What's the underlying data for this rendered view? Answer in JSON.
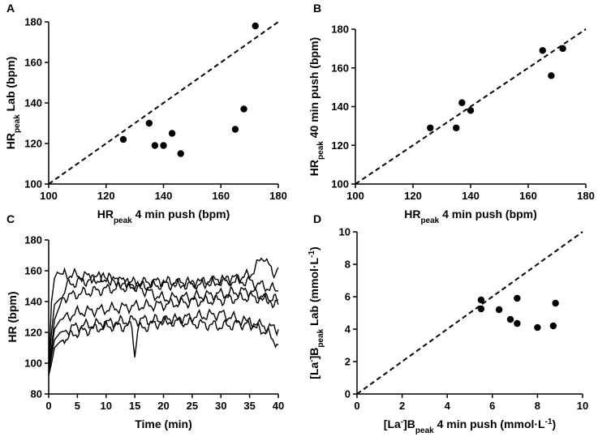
{
  "chart_data": [
    {
      "panel": "A",
      "type": "scatter",
      "xlabel": {
        "main": "HR",
        "sub": "peak",
        "rest": " 4 min push (bpm)"
      },
      "ylabel": {
        "main": "HR",
        "sub": "peak",
        "rest": " Lab (bpm)"
      },
      "xlim": [
        100,
        180
      ],
      "ylim": [
        100,
        180
      ],
      "xticks": [
        "100",
        "120",
        "140",
        "160",
        "180"
      ],
      "yticks": [
        "100",
        "120",
        "140",
        "160",
        "180"
      ],
      "identity_line": true,
      "points": [
        [
          126,
          122
        ],
        [
          135,
          130
        ],
        [
          137,
          119
        ],
        [
          140,
          119
        ],
        [
          143,
          125
        ],
        [
          146,
          115
        ],
        [
          165,
          127
        ],
        [
          168,
          137
        ],
        [
          172,
          178
        ]
      ]
    },
    {
      "panel": "B",
      "type": "scatter",
      "xlabel": {
        "main": "HR",
        "sub": "peak",
        "rest": " 4 min push (bpm)"
      },
      "ylabel": {
        "main": "HR",
        "sub": "peak",
        "rest": " 40 min push (bpm)"
      },
      "xlim": [
        100,
        180
      ],
      "ylim": [
        100,
        180
      ],
      "xticks": [
        "100",
        "120",
        "140",
        "160",
        "180"
      ],
      "yticks": [
        "100",
        "120",
        "140",
        "160",
        "180"
      ],
      "identity_line": true,
      "points": [
        [
          126,
          129
        ],
        [
          135,
          129
        ],
        [
          137,
          142
        ],
        [
          140,
          138
        ],
        [
          165,
          169
        ],
        [
          168,
          156
        ],
        [
          172,
          170
        ]
      ]
    },
    {
      "panel": "C",
      "type": "line",
      "xlabel": {
        "main": "Time (min)",
        "sub": "",
        "rest": ""
      },
      "ylabel": {
        "main": "HR (bpm)",
        "sub": "",
        "rest": ""
      },
      "xlim": [
        0,
        40
      ],
      "ylim": [
        80,
        180
      ],
      "xticks": [
        "0",
        "5",
        "10",
        "15",
        "20",
        "25",
        "30",
        "35",
        "40"
      ],
      "yticks": [
        "80",
        "100",
        "120",
        "140",
        "160",
        "180"
      ],
      "series": [
        {
          "name": "s1",
          "t": [
            0,
            0.5,
            1,
            1.5,
            2,
            5,
            10,
            15,
            20,
            25,
            30,
            35,
            40
          ],
          "hr": [
            100,
            140,
            155,
            159,
            158,
            157,
            155,
            152,
            153,
            151,
            154,
            153,
            147
          ]
        },
        {
          "name": "s2",
          "t": [
            0,
            0.5,
            1,
            2,
            5,
            10,
            15,
            20,
            25,
            30,
            35,
            37.5,
            39,
            40
          ],
          "hr": [
            98,
            120,
            138,
            142,
            145,
            148,
            150,
            151,
            152,
            153,
            157,
            170,
            158,
            162
          ]
        },
        {
          "name": "s3",
          "t": [
            0,
            0.5,
            1,
            2,
            3,
            5,
            10,
            15,
            20,
            25,
            30,
            35,
            40
          ],
          "hr": [
            95,
            110,
            128,
            138,
            150,
            153,
            155,
            150,
            142,
            143,
            145,
            147,
            138
          ]
        },
        {
          "name": "s4",
          "t": [
            0,
            0.5,
            1,
            2,
            5,
            10,
            15,
            20,
            25,
            30,
            35,
            40
          ],
          "hr": [
            96,
            108,
            122,
            128,
            133,
            135,
            137,
            138,
            140,
            141,
            143,
            141
          ]
        },
        {
          "name": "s5",
          "t": [
            0,
            0.5,
            1,
            2,
            5,
            10,
            15,
            20,
            25,
            30,
            35,
            40
          ],
          "hr": [
            93,
            105,
            115,
            120,
            124,
            126,
            128,
            128,
            126,
            124,
            126,
            122
          ]
        },
        {
          "name": "s6",
          "t": [
            0,
            0.5,
            1,
            2,
            5,
            10,
            14.5,
            15,
            15.5,
            20,
            25,
            30,
            35,
            38,
            40
          ],
          "hr": [
            92,
            100,
            110,
            114,
            120,
            124,
            124,
            105,
            122,
            127,
            130,
            132,
            126,
            120,
            112
          ]
        }
      ]
    },
    {
      "panel": "D",
      "type": "scatter",
      "xlabel": {
        "main": "[La",
        "sup": "-",
        "main2": "]B",
        "sub": "peak",
        "rest": " 4 min push   (mmol·L",
        "sup2": "-1",
        "end": ")"
      },
      "ylabel": {
        "main": "[La",
        "sup": "-",
        "main2": "]B",
        "sub": "peak",
        "rest": " Lab    (mmol·L",
        "sup2": "-1",
        "end": ")"
      },
      "xlim": [
        0,
        10
      ],
      "ylim": [
        0,
        10
      ],
      "xticks": [
        "0",
        "2",
        "4",
        "6",
        "8",
        "10"
      ],
      "yticks": [
        "0",
        "2",
        "4",
        "6",
        "8",
        "10"
      ],
      "identity_line": true,
      "points": [
        [
          5.5,
          5.8
        ],
        [
          5.5,
          5.25
        ],
        [
          6.3,
          5.2
        ],
        [
          6.8,
          4.6
        ],
        [
          7.1,
          4.35
        ],
        [
          7.1,
          5.9
        ],
        [
          8.0,
          4.1
        ],
        [
          8.7,
          4.2
        ],
        [
          8.8,
          5.6
        ]
      ]
    }
  ]
}
